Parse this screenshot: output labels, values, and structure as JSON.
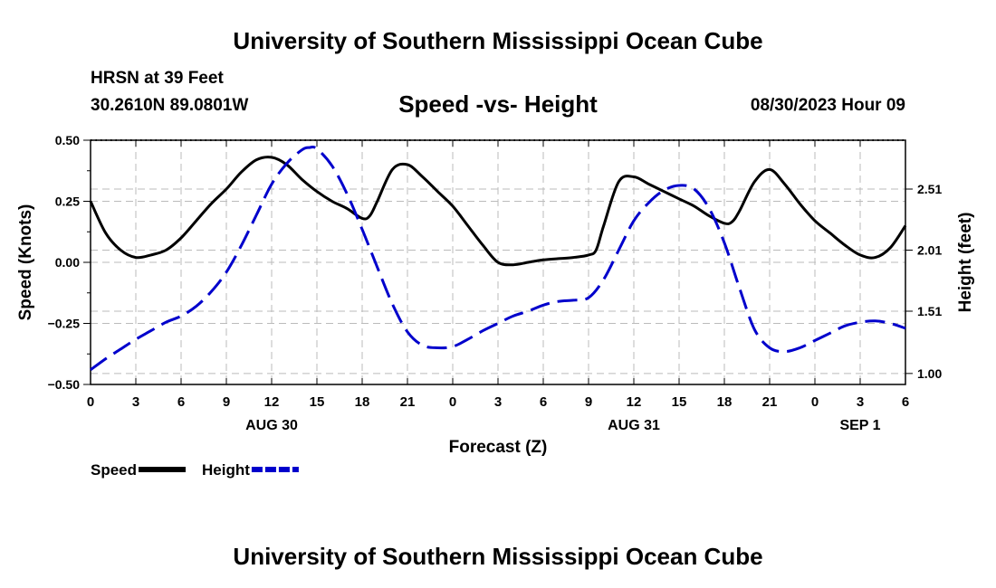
{
  "header": {
    "title": "University of Southern Mississippi Ocean Cube",
    "station": "HRSN at 39 Feet",
    "coords": "30.2610N  89.0801W",
    "subtitle": "Speed -vs- Height",
    "run_time": "08/30/2023 Hour 09"
  },
  "footer": {
    "title": "University of Southern Mississippi Ocean Cube"
  },
  "colors": {
    "speed": "#000000",
    "height": "#0000cc",
    "grid": "#bbbbbb"
  },
  "chart_data": {
    "type": "line",
    "xlabel": "Forecast (Z)",
    "ylabel_left": "Speed (Knots)",
    "ylabel_right": "Height (feet)",
    "x_range": [
      0,
      54
    ],
    "ylim_left": [
      -0.5,
      0.5
    ],
    "ylim_right": [
      0.91,
      2.91
    ],
    "x_tick_labels": [
      "0",
      "3",
      "6",
      "9",
      "12",
      "15",
      "18",
      "21",
      "0",
      "3",
      "6",
      "9",
      "12",
      "15",
      "18",
      "21",
      "0",
      "3",
      "6"
    ],
    "date_labels": [
      {
        "label": "AUG 30",
        "x": 12
      },
      {
        "label": "AUG 31",
        "x": 36
      },
      {
        "label": "SEP 1",
        "x": 51
      }
    ],
    "y_ticks_left": [
      0.5,
      0.25,
      0.0,
      -0.25,
      -0.5
    ],
    "y_tick_labels_left": [
      "0.50",
      "0.25",
      "0.00",
      "−0.25",
      "−0.50"
    ],
    "y_ticks_right": [
      2.51,
      2.01,
      1.51,
      1.0
    ],
    "y_tick_labels_right": [
      "2.51",
      "2.01",
      "1.51",
      "1.00"
    ],
    "legend": [
      {
        "name": "Speed",
        "style": "solid"
      },
      {
        "name": "Height",
        "style": "dashed"
      }
    ],
    "series": [
      {
        "name": "Speed",
        "axis": "left",
        "x": [
          0,
          1,
          2,
          3,
          4,
          5,
          6,
          7,
          8,
          9,
          10,
          11,
          12,
          13,
          14,
          15,
          16,
          17,
          18,
          18.5,
          19,
          20,
          21,
          22,
          23,
          24,
          25,
          26,
          27,
          28,
          29,
          30,
          31,
          32,
          33,
          33.5,
          34,
          35,
          36,
          37,
          38,
          39,
          40,
          41,
          42,
          42.5,
          43,
          44,
          45,
          46,
          47,
          48,
          49,
          50,
          51,
          52,
          53,
          54
        ],
        "values": [
          0.25,
          0.12,
          0.05,
          0.02,
          0.03,
          0.05,
          0.1,
          0.17,
          0.24,
          0.3,
          0.37,
          0.42,
          0.43,
          0.4,
          0.34,
          0.29,
          0.25,
          0.22,
          0.18,
          0.19,
          0.25,
          0.38,
          0.4,
          0.35,
          0.29,
          0.23,
          0.15,
          0.07,
          0.0,
          -0.01,
          0.0,
          0.01,
          0.015,
          0.02,
          0.03,
          0.05,
          0.15,
          0.33,
          0.35,
          0.32,
          0.29,
          0.26,
          0.23,
          0.19,
          0.16,
          0.165,
          0.21,
          0.33,
          0.38,
          0.32,
          0.24,
          0.17,
          0.12,
          0.07,
          0.03,
          0.02,
          0.06,
          0.15
        ]
      },
      {
        "name": "Height",
        "axis": "right",
        "x": [
          0,
          1,
          2,
          3,
          4,
          5,
          6,
          7,
          8,
          9,
          10,
          11,
          12,
          13,
          14,
          14.5,
          15,
          16,
          17,
          18,
          19,
          20,
          21,
          22,
          23,
          24,
          25,
          26,
          27,
          28,
          29,
          30,
          31,
          32,
          33,
          34,
          35,
          36,
          37,
          38,
          39,
          40,
          41,
          42,
          43,
          44,
          45,
          46,
          47,
          48,
          49,
          50,
          51,
          52,
          53,
          54
        ],
        "values": [
          1.03,
          1.12,
          1.2,
          1.28,
          1.35,
          1.42,
          1.47,
          1.55,
          1.67,
          1.83,
          2.05,
          2.3,
          2.55,
          2.72,
          2.83,
          2.85,
          2.84,
          2.7,
          2.47,
          2.18,
          1.87,
          1.57,
          1.34,
          1.23,
          1.21,
          1.22,
          1.28,
          1.35,
          1.41,
          1.47,
          1.51,
          1.56,
          1.59,
          1.6,
          1.62,
          1.77,
          2.01,
          2.25,
          2.4,
          2.5,
          2.54,
          2.51,
          2.35,
          2.07,
          1.7,
          1.36,
          1.21,
          1.18,
          1.21,
          1.27,
          1.33,
          1.39,
          1.42,
          1.43,
          1.41,
          1.37
        ]
      }
    ]
  }
}
